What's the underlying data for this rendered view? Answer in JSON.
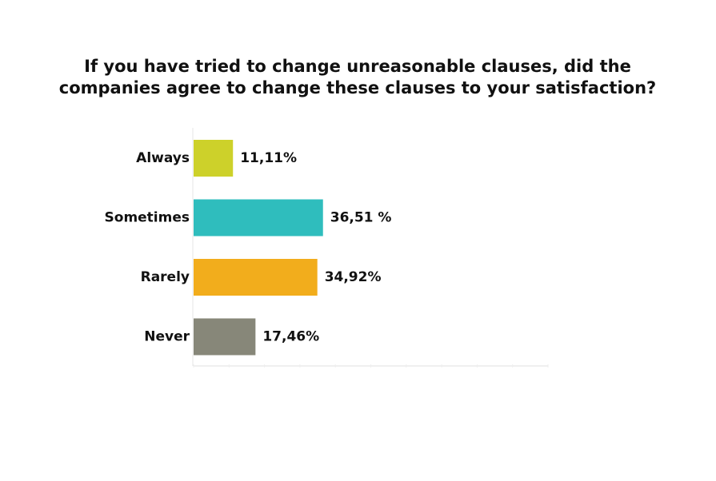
{
  "chart_data": {
    "type": "hbar",
    "title": "If you have tried to change unreasonable clauses, did the companies agree to change these clauses to your satisfaction?",
    "categories": [
      "Always",
      "Sometimes",
      "Rarely",
      "Never"
    ],
    "values": [
      11.11,
      36.51,
      34.92,
      17.46
    ],
    "value_labels": [
      "11,11%",
      "36,51 %",
      "34,92%",
      "17,46%"
    ],
    "colors": [
      "#cdd12a",
      "#2fbdbd",
      "#f2ad1c",
      "#878779"
    ],
    "xlim": [
      0,
      100
    ],
    "xticks": [
      0,
      10,
      20,
      30,
      40,
      50,
      60,
      70,
      80,
      90,
      100
    ]
  }
}
